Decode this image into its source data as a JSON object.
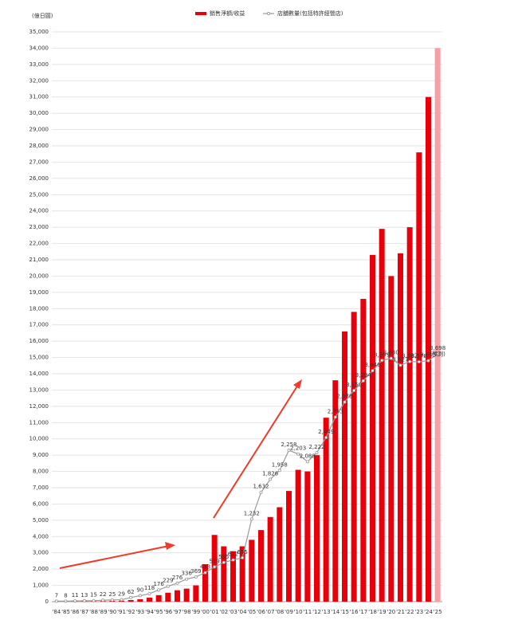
{
  "chart_data": {
    "type": "bar-line",
    "y_label": "(億日圓)",
    "categories": [
      "'84",
      "'85",
      "'86",
      "'87",
      "'88",
      "'89",
      "'90",
      "'91",
      "'92",
      "'93",
      "'94",
      "'95",
      "'96",
      "'97",
      "'98",
      "'99",
      "'00",
      "'01",
      "'02",
      "'03",
      "'04",
      "'05",
      "'06",
      "'07",
      "'08",
      "'09",
      "'10",
      "'11",
      "'12",
      "'13",
      "'14",
      "'15",
      "'16",
      "'17",
      "'18",
      "'19",
      "'20",
      "'21",
      "'22",
      "'23",
      "'24",
      "'25"
    ],
    "series": [
      {
        "name": "銷售淨額/收益",
        "type": "bar",
        "color": "#e8000b",
        "colors": [
          "#e8000b",
          "#e8000b",
          "#e8000b",
          "#e8000b",
          "#e8000b",
          "#e8000b",
          "#e8000b",
          "#e8000b",
          "#e8000b",
          "#e8000b",
          "#e8000b",
          "#e8000b",
          "#e8000b",
          "#e8000b",
          "#e8000b",
          "#e8000b",
          "#e8000b",
          "#e8000b",
          "#e8000b",
          "#e8000b",
          "#e8000b",
          "#e8000b",
          "#e8000b",
          "#e8000b",
          "#e8000b",
          "#e8000b",
          "#e8000b",
          "#e8000b",
          "#e8000b",
          "#e8000b",
          "#e8000b",
          "#e8000b",
          "#e8000b",
          "#e8000b",
          "#e8000b",
          "#e8000b",
          "#e8000b",
          "#e8000b",
          "#e8000b",
          "#e8000b",
          "#e8000b",
          "#f4a0a4"
        ],
        "values": [
          10,
          15,
          20,
          25,
          30,
          40,
          50,
          60,
          100,
          150,
          250,
          400,
          550,
          700,
          800,
          1000,
          2300,
          4100,
          3400,
          3100,
          3400,
          3800,
          4400,
          5200,
          5800,
          6800,
          8100,
          8000,
          9000,
          11300,
          13600,
          16600,
          17800,
          18600,
          21300,
          22900,
          20000,
          21400,
          23000,
          27600,
          31000,
          34000
        ]
      },
      {
        "name": "店舖數量(包括特許經營店)",
        "type": "line",
        "axis": "y2",
        "color": "#9a9a9a",
        "values": [
          7,
          8,
          11,
          13,
          15,
          22,
          25,
          29,
          62,
          90,
          118,
          176,
          229,
          276,
          336,
          369,
          433,
          519,
          585,
          622,
          655,
          1232,
          1632,
          1826,
          1958,
          2258,
          2203,
          2088,
          2222,
          2449,
          2753,
          2978,
          3150,
          3294,
          3446,
          3599,
          3630,
          3527,
          3582,
          3578,
          3595,
          3698
        ],
        "value_labels": [
          "7",
          "8",
          "11",
          "13",
          "15",
          "22",
          "25",
          "29",
          "62",
          "90",
          "118",
          "176",
          "229",
          "276",
          "336",
          "369",
          "433",
          "519",
          "585",
          "622",
          "655",
          "1,232",
          "1,632",
          "1,826",
          "1,958",
          "2,258",
          "2,203",
          "2,088",
          "2,222",
          "2,449",
          "2,753",
          "2,978",
          "3,150",
          "3,294",
          "3,446",
          "3,599",
          "3,630",
          "3,527",
          "3,582",
          "3,578",
          "3,595",
          "3,698\n(預測)"
        ]
      }
    ],
    "ylim": [
      0,
      35000
    ],
    "yticks": [
      0,
      {
        "value": 1000,
        "label": "1,000"
      },
      {
        "value": 2000,
        "label": "2,000"
      },
      {
        "value": 3000,
        "label": "3,000"
      },
      {
        "value": 4000,
        "label": "4,000"
      },
      {
        "value": 5000,
        "label": "5,000"
      },
      {
        "value": 6000,
        "label": "6,000"
      },
      {
        "value": 7000,
        "label": "7,000"
      },
      {
        "value": 8000,
        "label": "8,000"
      },
      {
        "value": 9000,
        "label": "9,000"
      },
      {
        "value": 10000,
        "label": "10,000"
      },
      {
        "value": 11000,
        "label": "11,000"
      },
      {
        "value": 12000,
        "label": "12,000"
      },
      {
        "value": 13000,
        "label": "13,000"
      },
      {
        "value": 14000,
        "label": "14,000"
      },
      {
        "value": 15000,
        "label": "15,000"
      },
      {
        "value": 16000,
        "label": "16,000"
      },
      {
        "value": 17000,
        "label": "17,000"
      },
      {
        "value": 18000,
        "label": "18,000"
      },
      {
        "value": 19000,
        "label": "19,000"
      },
      {
        "value": 20000,
        "label": "20,000"
      },
      {
        "value": 21000,
        "label": "21,000"
      },
      {
        "value": 22000,
        "label": "22,000"
      },
      {
        "value": 23000,
        "label": "23,000"
      },
      {
        "value": 24000,
        "label": "24,000"
      },
      {
        "value": 25000,
        "label": "25,000"
      },
      {
        "value": 26000,
        "label": "26,000"
      },
      {
        "value": 27000,
        "label": "27,000"
      },
      {
        "value": 28000,
        "label": "28,000"
      },
      {
        "value": 29000,
        "label": "29,000"
      },
      {
        "value": 30000,
        "label": "30,000"
      },
      {
        "value": 31000,
        "label": "31,000"
      },
      {
        "value": 32000,
        "label": "32,000"
      },
      {
        "value": 33000,
        "label": "33,000"
      },
      {
        "value": 34000,
        "label": "34,000"
      },
      {
        "value": 35000,
        "label": "35,000"
      }
    ],
    "y2lim": [
      0,
      8500
    ],
    "grid": true
  }
}
